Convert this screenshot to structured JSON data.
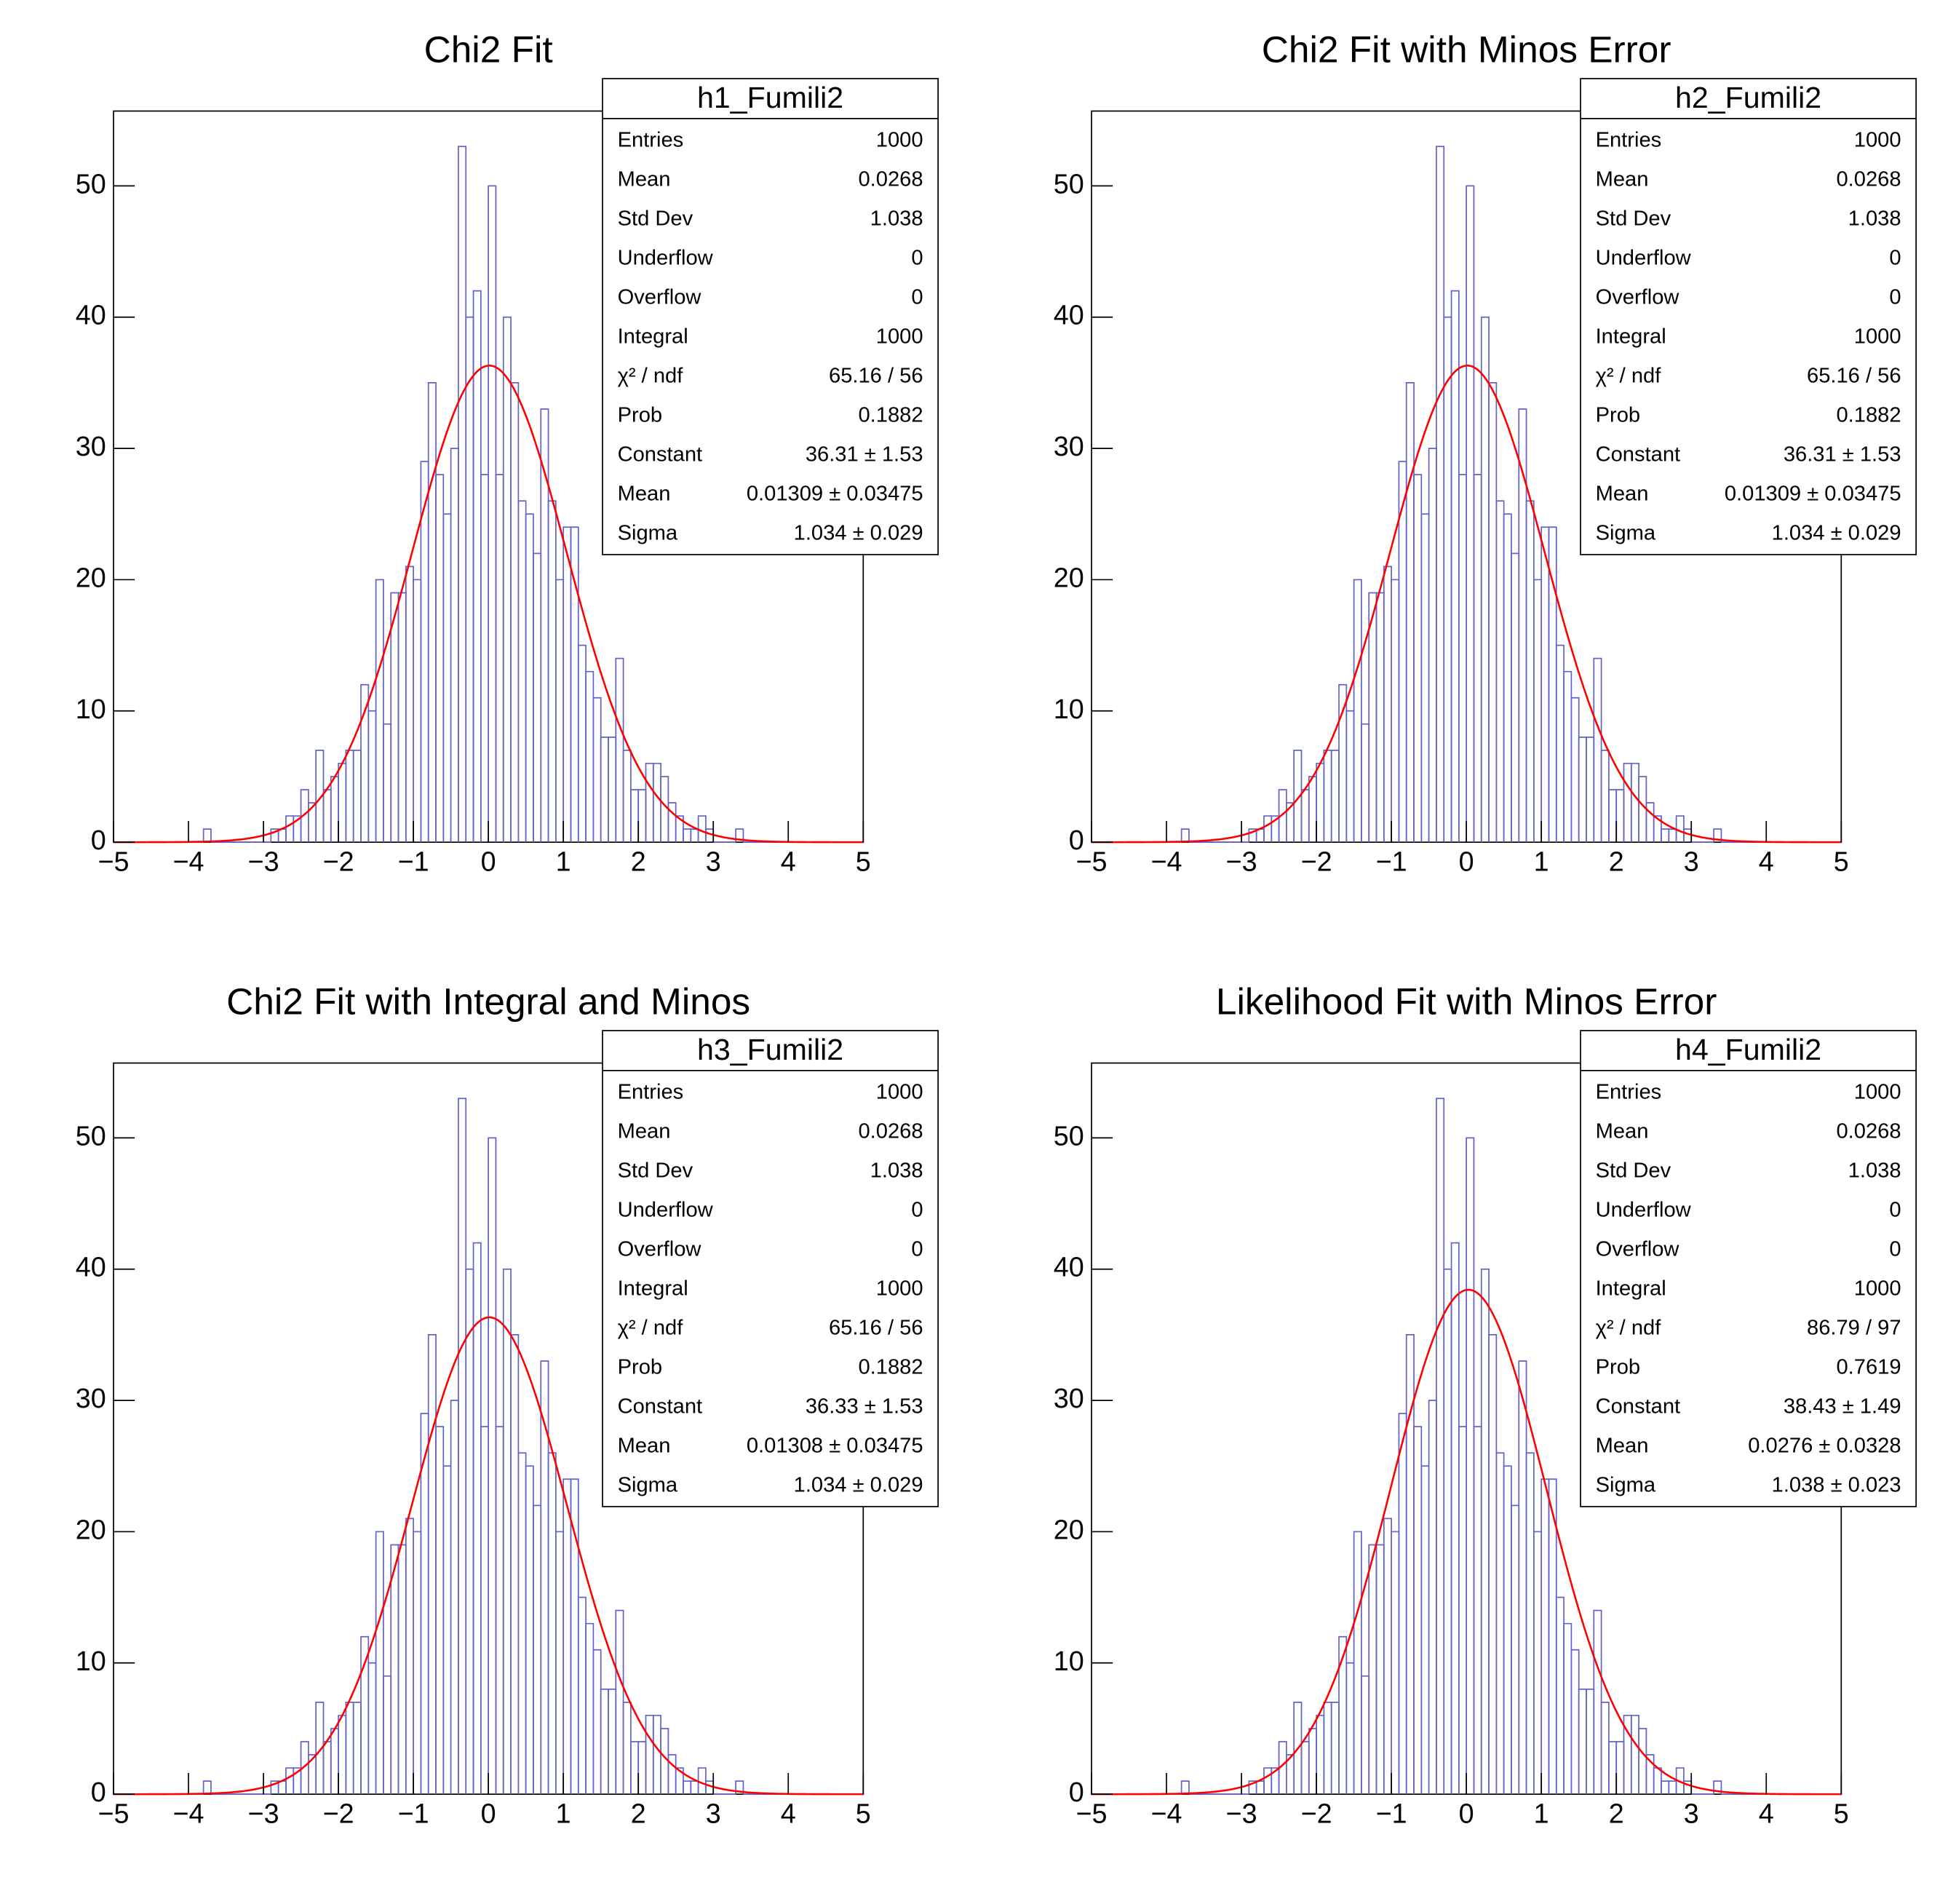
{
  "chart_data": [
    {
      "type": "histogram",
      "title": "Chi2 Fit",
      "bins": [
        -5,
        -4.9,
        -4.8,
        -4.7,
        -4.6,
        -4.5,
        -4.4,
        -4.3,
        -4.2,
        -4.1,
        -4,
        -3.9,
        -3.8,
        -3.7,
        -3.6,
        -3.5,
        -3.4,
        -3.3,
        -3.2,
        -3.1,
        -3,
        -2.9,
        -2.8,
        -2.7,
        -2.6,
        -2.5,
        -2.4,
        -2.3,
        -2.2,
        -2.1,
        -2,
        -1.9,
        -1.8,
        -1.7,
        -1.6,
        -1.5,
        -1.4,
        -1.3,
        -1.2,
        -1.1,
        -1,
        -0.9,
        -0.8,
        -0.7,
        -0.6,
        -0.5,
        -0.4,
        -0.3,
        -0.2,
        -0.1,
        0,
        0.1,
        0.2,
        0.3,
        0.4,
        0.5,
        0.6,
        0.7,
        0.8,
        0.9,
        1,
        1.1,
        1.2,
        1.3,
        1.4,
        1.5,
        1.6,
        1.7,
        1.8,
        1.9,
        2,
        2.1,
        2.2,
        2.3,
        2.4,
        2.5,
        2.6,
        2.7,
        2.8,
        2.9,
        3,
        3.1,
        3.2,
        3.3,
        3.4,
        3.5,
        3.6,
        3.7,
        3.8,
        3.9,
        4,
        4.1,
        4.2,
        4.3,
        4.4,
        4.5,
        4.6,
        4.7,
        4.8,
        4.9,
        5
      ],
      "counts": [
        0,
        0,
        0,
        0,
        0,
        0,
        0,
        0,
        0,
        0,
        0,
        0,
        1,
        0,
        0,
        0,
        0,
        0,
        0,
        0,
        0,
        1,
        1,
        2,
        2,
        4,
        3,
        7,
        4,
        5,
        6,
        7,
        7,
        12,
        10,
        20,
        9,
        19,
        19,
        21,
        20,
        29,
        35,
        28,
        25,
        30,
        53,
        40,
        42,
        28,
        50,
        28,
        40,
        35,
        26,
        25,
        22,
        33,
        26,
        20,
        24,
        24,
        15,
        13,
        11,
        8,
        8,
        14,
        7,
        4,
        4,
        6,
        6,
        5,
        3,
        2,
        1,
        1,
        2,
        1,
        0,
        0,
        0,
        1,
        0,
        0,
        0,
        0,
        0,
        0,
        0,
        0,
        0,
        0,
        0,
        0,
        0,
        0,
        0,
        0
      ],
      "color": "#6464c8",
      "fit_color": "#ff0000",
      "fit": {
        "constant": 36.31,
        "mean": 0.01309,
        "sigma": 1.034
      },
      "xlim": [
        -5,
        5
      ],
      "ylim": [
        0,
        55.7
      ],
      "xticks": [
        {
          "value": -5,
          "label": "−5"
        },
        {
          "value": -4,
          "label": "−4"
        },
        {
          "value": -3,
          "label": "−3"
        },
        {
          "value": -2,
          "label": "−2"
        },
        {
          "value": -1,
          "label": "−1"
        },
        0,
        1,
        2,
        3,
        4,
        5
      ],
      "yticks": [
        0,
        10,
        20,
        30,
        40,
        50
      ],
      "stats": {
        "title": "h1_Fumili2",
        "rows": [
          [
            "Entries",
            "1000"
          ],
          [
            "Mean",
            "0.0268"
          ],
          [
            "Std Dev",
            "1.038"
          ],
          [
            "Underflow",
            "0"
          ],
          [
            "Overflow",
            "0"
          ],
          [
            "Integral",
            "1000"
          ],
          [
            "χ² / ndf",
            "65.16 / 56"
          ],
          [
            "Prob",
            "0.1882"
          ],
          [
            "Constant",
            "36.31 ± 1.53"
          ],
          [
            "Mean",
            "0.01309 ± 0.03475"
          ],
          [
            "Sigma",
            "1.034 ± 0.029"
          ]
        ]
      }
    },
    {
      "type": "histogram",
      "title": "Chi2 Fit with Minos Error",
      "bins": [
        -5,
        -4.9,
        -4.8,
        -4.7,
        -4.6,
        -4.5,
        -4.4,
        -4.3,
        -4.2,
        -4.1,
        -4,
        -3.9,
        -3.8,
        -3.7,
        -3.6,
        -3.5,
        -3.4,
        -3.3,
        -3.2,
        -3.1,
        -3,
        -2.9,
        -2.8,
        -2.7,
        -2.6,
        -2.5,
        -2.4,
        -2.3,
        -2.2,
        -2.1,
        -2,
        -1.9,
        -1.8,
        -1.7,
        -1.6,
        -1.5,
        -1.4,
        -1.3,
        -1.2,
        -1.1,
        -1,
        -0.9,
        -0.8,
        -0.7,
        -0.6,
        -0.5,
        -0.4,
        -0.3,
        -0.2,
        -0.1,
        0,
        0.1,
        0.2,
        0.3,
        0.4,
        0.5,
        0.6,
        0.7,
        0.8,
        0.9,
        1,
        1.1,
        1.2,
        1.3,
        1.4,
        1.5,
        1.6,
        1.7,
        1.8,
        1.9,
        2,
        2.1,
        2.2,
        2.3,
        2.4,
        2.5,
        2.6,
        2.7,
        2.8,
        2.9,
        3,
        3.1,
        3.2,
        3.3,
        3.4,
        3.5,
        3.6,
        3.7,
        3.8,
        3.9,
        4,
        4.1,
        4.2,
        4.3,
        4.4,
        4.5,
        4.6,
        4.7,
        4.8,
        4.9,
        5
      ],
      "counts": [
        0,
        0,
        0,
        0,
        0,
        0,
        0,
        0,
        0,
        0,
        0,
        0,
        1,
        0,
        0,
        0,
        0,
        0,
        0,
        0,
        0,
        1,
        1,
        2,
        2,
        4,
        3,
        7,
        4,
        5,
        6,
        7,
        7,
        12,
        10,
        20,
        9,
        19,
        19,
        21,
        20,
        29,
        35,
        28,
        25,
        30,
        53,
        40,
        42,
        28,
        50,
        28,
        40,
        35,
        26,
        25,
        22,
        33,
        26,
        20,
        24,
        24,
        15,
        13,
        11,
        8,
        8,
        14,
        7,
        4,
        4,
        6,
        6,
        5,
        3,
        2,
        1,
        1,
        2,
        1,
        0,
        0,
        0,
        1,
        0,
        0,
        0,
        0,
        0,
        0,
        0,
        0,
        0,
        0,
        0,
        0,
        0,
        0,
        0,
        0
      ],
      "color": "#6464c8",
      "fit_color": "#ff0000",
      "fit": {
        "constant": 36.31,
        "mean": 0.01309,
        "sigma": 1.034
      },
      "xlim": [
        -5,
        5
      ],
      "ylim": [
        0,
        55.7
      ],
      "xticks": [
        {
          "value": -5,
          "label": "−5"
        },
        {
          "value": -4,
          "label": "−4"
        },
        {
          "value": -3,
          "label": "−3"
        },
        {
          "value": -2,
          "label": "−2"
        },
        {
          "value": -1,
          "label": "−1"
        },
        0,
        1,
        2,
        3,
        4,
        5
      ],
      "yticks": [
        0,
        10,
        20,
        30,
        40,
        50
      ],
      "stats": {
        "title": "h2_Fumili2",
        "rows": [
          [
            "Entries",
            "1000"
          ],
          [
            "Mean",
            "0.0268"
          ],
          [
            "Std Dev",
            "1.038"
          ],
          [
            "Underflow",
            "0"
          ],
          [
            "Overflow",
            "0"
          ],
          [
            "Integral",
            "1000"
          ],
          [
            "χ² / ndf",
            "65.16 / 56"
          ],
          [
            "Prob",
            "0.1882"
          ],
          [
            "Constant",
            "36.31 ± 1.53"
          ],
          [
            "Mean",
            "0.01309 ± 0.03475"
          ],
          [
            "Sigma",
            "1.034 ± 0.029"
          ]
        ]
      }
    },
    {
      "type": "histogram",
      "title": "Chi2 Fit with Integral and Minos",
      "bins": [
        -5,
        -4.9,
        -4.8,
        -4.7,
        -4.6,
        -4.5,
        -4.4,
        -4.3,
        -4.2,
        -4.1,
        -4,
        -3.9,
        -3.8,
        -3.7,
        -3.6,
        -3.5,
        -3.4,
        -3.3,
        -3.2,
        -3.1,
        -3,
        -2.9,
        -2.8,
        -2.7,
        -2.6,
        -2.5,
        -2.4,
        -2.3,
        -2.2,
        -2.1,
        -2,
        -1.9,
        -1.8,
        -1.7,
        -1.6,
        -1.5,
        -1.4,
        -1.3,
        -1.2,
        -1.1,
        -1,
        -0.9,
        -0.8,
        -0.7,
        -0.6,
        -0.5,
        -0.4,
        -0.3,
        -0.2,
        -0.1,
        0,
        0.1,
        0.2,
        0.3,
        0.4,
        0.5,
        0.6,
        0.7,
        0.8,
        0.9,
        1,
        1.1,
        1.2,
        1.3,
        1.4,
        1.5,
        1.6,
        1.7,
        1.8,
        1.9,
        2,
        2.1,
        2.2,
        2.3,
        2.4,
        2.5,
        2.6,
        2.7,
        2.8,
        2.9,
        3,
        3.1,
        3.2,
        3.3,
        3.4,
        3.5,
        3.6,
        3.7,
        3.8,
        3.9,
        4,
        4.1,
        4.2,
        4.3,
        4.4,
        4.5,
        4.6,
        4.7,
        4.8,
        4.9,
        5
      ],
      "counts": [
        0,
        0,
        0,
        0,
        0,
        0,
        0,
        0,
        0,
        0,
        0,
        0,
        1,
        0,
        0,
        0,
        0,
        0,
        0,
        0,
        0,
        1,
        1,
        2,
        2,
        4,
        3,
        7,
        4,
        5,
        6,
        7,
        7,
        12,
        10,
        20,
        9,
        19,
        19,
        21,
        20,
        29,
        35,
        28,
        25,
        30,
        53,
        40,
        42,
        28,
        50,
        28,
        40,
        35,
        26,
        25,
        22,
        33,
        26,
        20,
        24,
        24,
        15,
        13,
        11,
        8,
        8,
        14,
        7,
        4,
        4,
        6,
        6,
        5,
        3,
        2,
        1,
        1,
        2,
        1,
        0,
        0,
        0,
        1,
        0,
        0,
        0,
        0,
        0,
        0,
        0,
        0,
        0,
        0,
        0,
        0,
        0,
        0,
        0,
        0
      ],
      "color": "#6464c8",
      "fit_color": "#ff0000",
      "fit": {
        "constant": 36.33,
        "mean": 0.01308,
        "sigma": 1.034
      },
      "xlim": [
        -5,
        5
      ],
      "ylim": [
        0,
        55.7
      ],
      "xticks": [
        {
          "value": -5,
          "label": "−5"
        },
        {
          "value": -4,
          "label": "−4"
        },
        {
          "value": -3,
          "label": "−3"
        },
        {
          "value": -2,
          "label": "−2"
        },
        {
          "value": -1,
          "label": "−1"
        },
        0,
        1,
        2,
        3,
        4,
        5
      ],
      "yticks": [
        0,
        10,
        20,
        30,
        40,
        50
      ],
      "stats": {
        "title": "h3_Fumili2",
        "rows": [
          [
            "Entries",
            "1000"
          ],
          [
            "Mean",
            "0.0268"
          ],
          [
            "Std Dev",
            "1.038"
          ],
          [
            "Underflow",
            "0"
          ],
          [
            "Overflow",
            "0"
          ],
          [
            "Integral",
            "1000"
          ],
          [
            "χ² / ndf",
            "65.16 / 56"
          ],
          [
            "Prob",
            "0.1882"
          ],
          [
            "Constant",
            "36.33 ± 1.53"
          ],
          [
            "Mean",
            "0.01308 ± 0.03475"
          ],
          [
            "Sigma",
            "1.034 ± 0.029"
          ]
        ]
      }
    },
    {
      "type": "histogram",
      "title": "Likelihood Fit with Minos Error",
      "bins": [
        -5,
        -4.9,
        -4.8,
        -4.7,
        -4.6,
        -4.5,
        -4.4,
        -4.3,
        -4.2,
        -4.1,
        -4,
        -3.9,
        -3.8,
        -3.7,
        -3.6,
        -3.5,
        -3.4,
        -3.3,
        -3.2,
        -3.1,
        -3,
        -2.9,
        -2.8,
        -2.7,
        -2.6,
        -2.5,
        -2.4,
        -2.3,
        -2.2,
        -2.1,
        -2,
        -1.9,
        -1.8,
        -1.7,
        -1.6,
        -1.5,
        -1.4,
        -1.3,
        -1.2,
        -1.1,
        -1,
        -0.9,
        -0.8,
        -0.7,
        -0.6,
        -0.5,
        -0.4,
        -0.3,
        -0.2,
        -0.1,
        0,
        0.1,
        0.2,
        0.3,
        0.4,
        0.5,
        0.6,
        0.7,
        0.8,
        0.9,
        1,
        1.1,
        1.2,
        1.3,
        1.4,
        1.5,
        1.6,
        1.7,
        1.8,
        1.9,
        2,
        2.1,
        2.2,
        2.3,
        2.4,
        2.5,
        2.6,
        2.7,
        2.8,
        2.9,
        3,
        3.1,
        3.2,
        3.3,
        3.4,
        3.5,
        3.6,
        3.7,
        3.8,
        3.9,
        4,
        4.1,
        4.2,
        4.3,
        4.4,
        4.5,
        4.6,
        4.7,
        4.8,
        4.9,
        5
      ],
      "counts": [
        0,
        0,
        0,
        0,
        0,
        0,
        0,
        0,
        0,
        0,
        0,
        0,
        1,
        0,
        0,
        0,
        0,
        0,
        0,
        0,
        0,
        1,
        1,
        2,
        2,
        4,
        3,
        7,
        4,
        5,
        6,
        7,
        7,
        12,
        10,
        20,
        9,
        19,
        19,
        21,
        20,
        29,
        35,
        28,
        25,
        30,
        53,
        40,
        42,
        28,
        50,
        28,
        40,
        35,
        26,
        25,
        22,
        33,
        26,
        20,
        24,
        24,
        15,
        13,
        11,
        8,
        8,
        14,
        7,
        4,
        4,
        6,
        6,
        5,
        3,
        2,
        1,
        1,
        2,
        1,
        0,
        0,
        0,
        1,
        0,
        0,
        0,
        0,
        0,
        0,
        0,
        0,
        0,
        0,
        0,
        0,
        0,
        0,
        0,
        0
      ],
      "color": "#6464c8",
      "fit_color": "#ff0000",
      "fit": {
        "constant": 38.43,
        "mean": 0.0276,
        "sigma": 1.038
      },
      "xlim": [
        -5,
        5
      ],
      "ylim": [
        0,
        55.7
      ],
      "xticks": [
        {
          "value": -5,
          "label": "−5"
        },
        {
          "value": -4,
          "label": "−4"
        },
        {
          "value": -3,
          "label": "−3"
        },
        {
          "value": -2,
          "label": "−2"
        },
        {
          "value": -1,
          "label": "−1"
        },
        0,
        1,
        2,
        3,
        4,
        5
      ],
      "yticks": [
        0,
        10,
        20,
        30,
        40,
        50
      ],
      "stats": {
        "title": "h4_Fumili2",
        "rows": [
          [
            "Entries",
            "1000"
          ],
          [
            "Mean",
            "0.0268"
          ],
          [
            "Std Dev",
            "1.038"
          ],
          [
            "Underflow",
            "0"
          ],
          [
            "Overflow",
            "0"
          ],
          [
            "Integral",
            "1000"
          ],
          [
            "χ² / ndf",
            "86.79 / 97"
          ],
          [
            "Prob",
            "0.7619"
          ],
          [
            "Constant",
            "38.43 ± 1.49"
          ],
          [
            "Mean",
            "0.0276 ± 0.0328"
          ],
          [
            "Sigma",
            "1.038 ± 0.023"
          ]
        ]
      }
    }
  ]
}
